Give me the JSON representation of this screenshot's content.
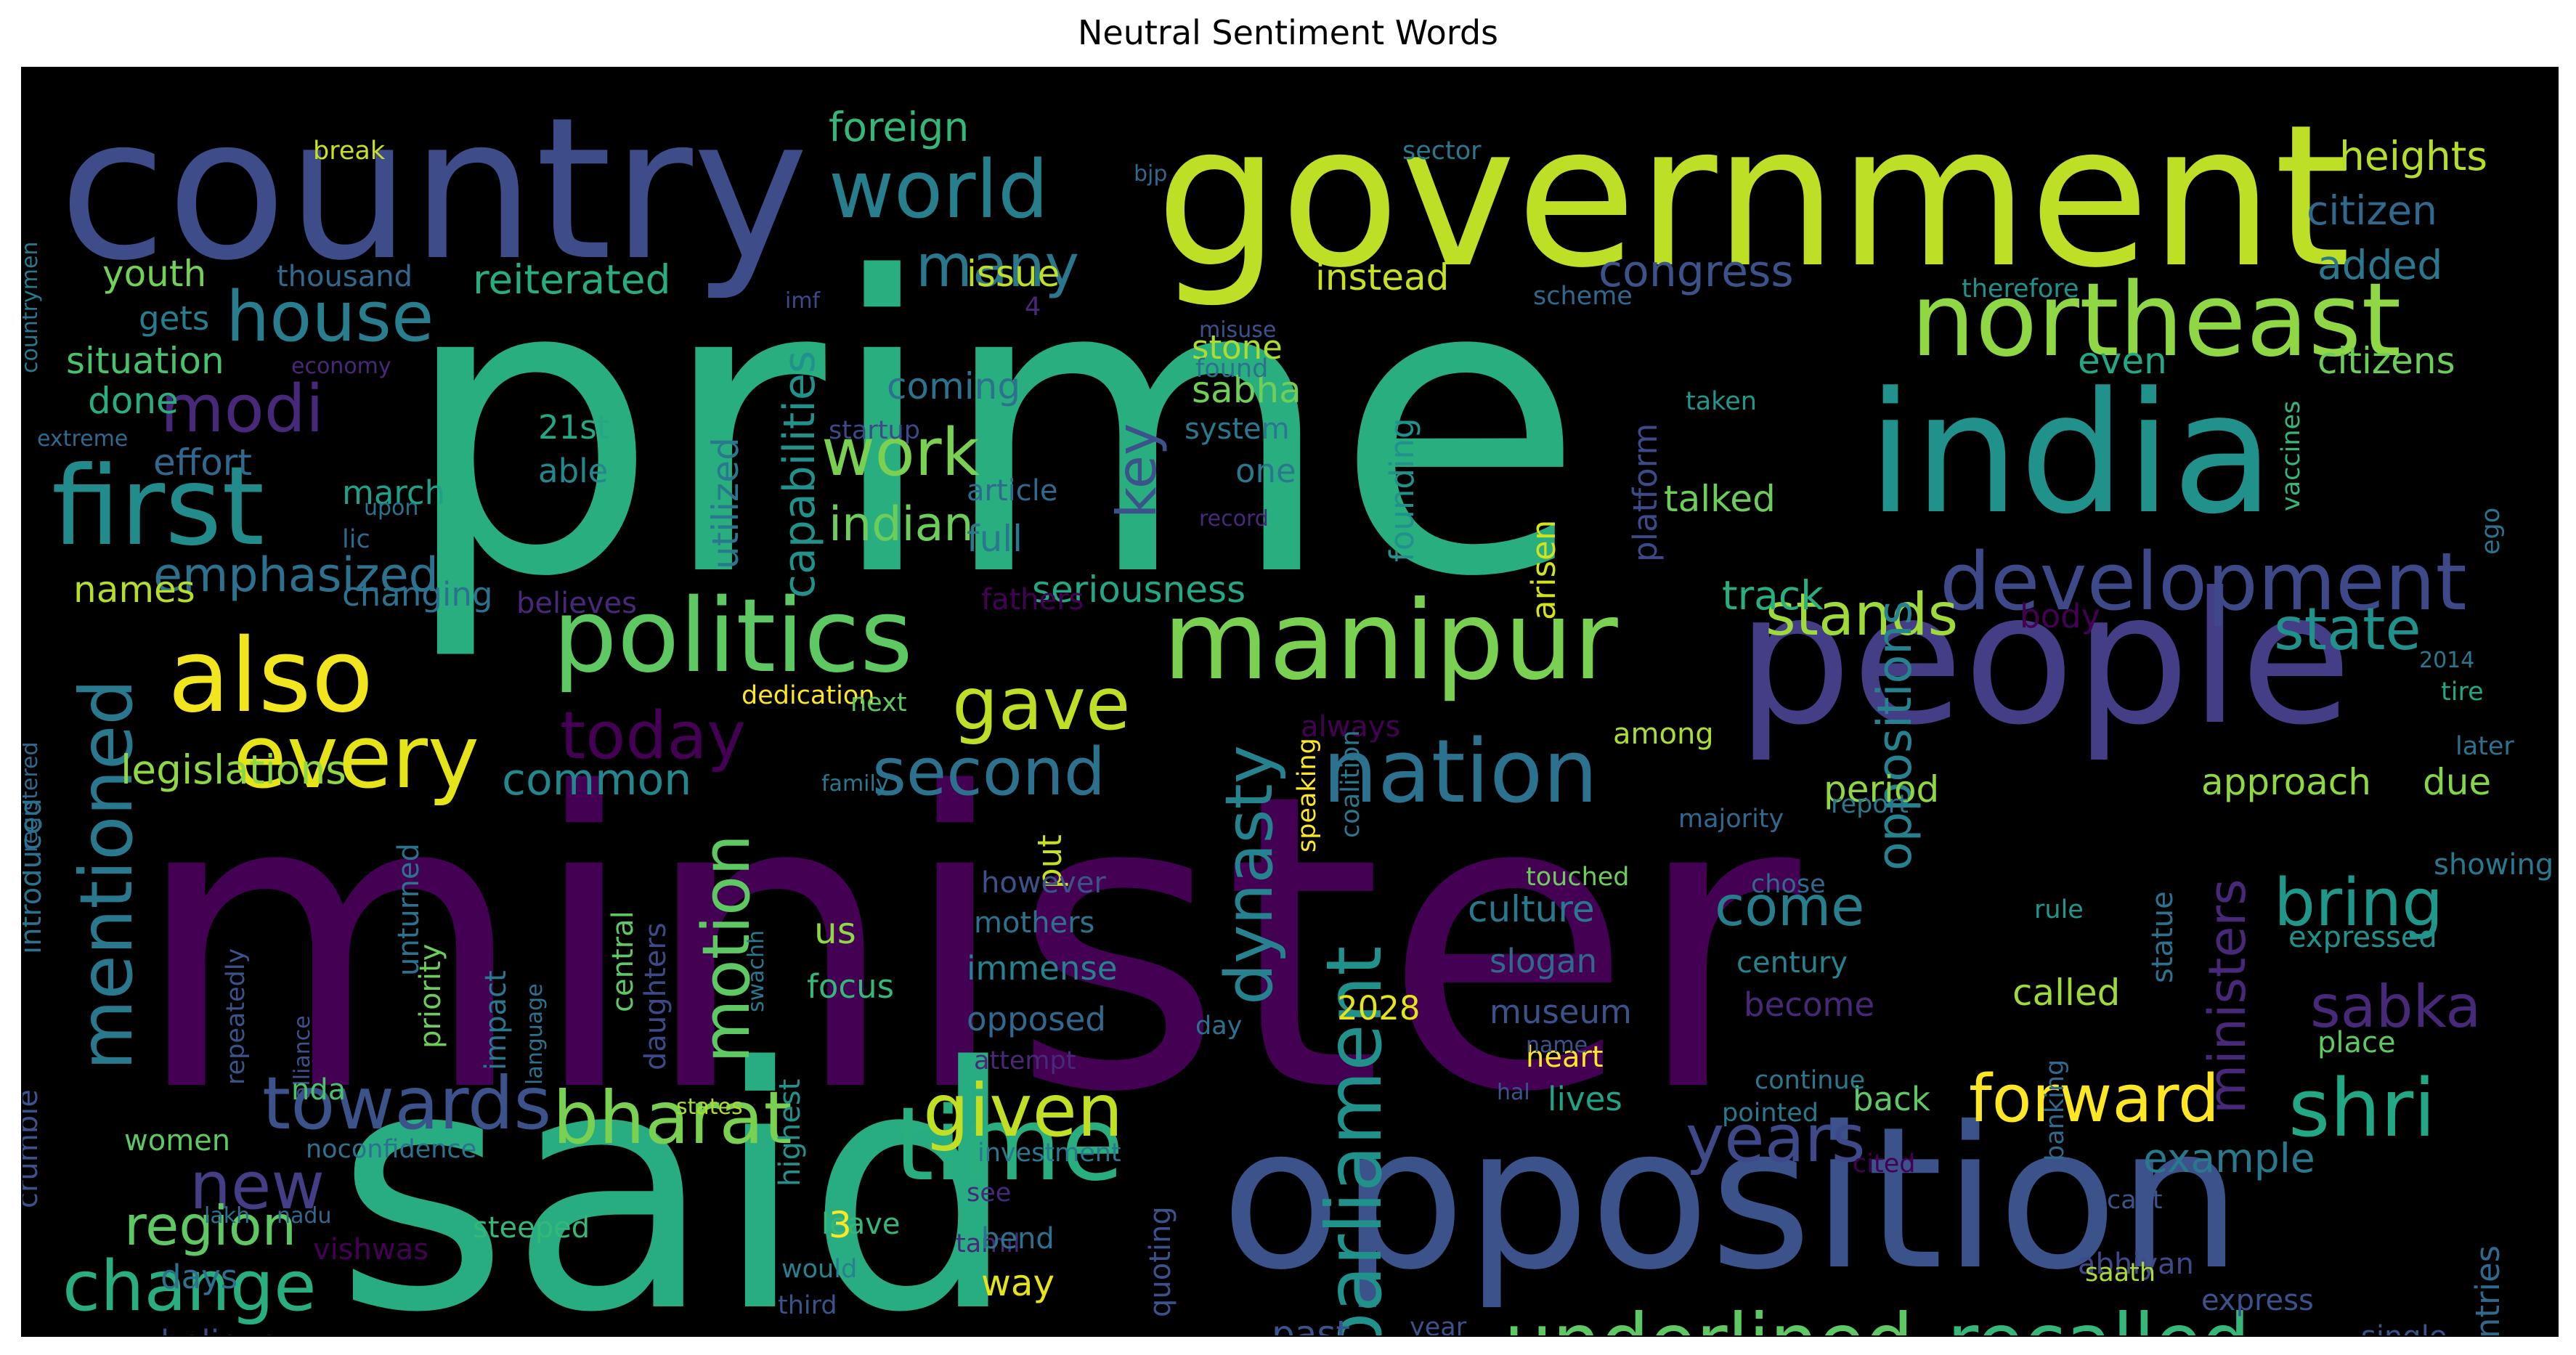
{
  "title": "Neutral Sentiment Words",
  "colors": {
    "background": "#000000",
    "palette": [
      "#440154",
      "#3b528b",
      "#21918c",
      "#5ec962",
      "#fde725",
      "#31688e",
      "#35b779",
      "#90d743",
      "#443983",
      "#2a788e"
    ]
  },
  "words": [
    {
      "text": "minister",
      "c": "#440154"
    },
    {
      "text": "prime",
      "c": "#29af7f"
    },
    {
      "text": "said",
      "c": "#27ad81"
    },
    {
      "text": "government",
      "c": "#bddf26"
    },
    {
      "text": "country",
      "c": "#3e4c8a"
    },
    {
      "text": "opposition",
      "c": "#3b528b"
    },
    {
      "text": "people",
      "c": "#433e85"
    },
    {
      "text": "india",
      "c": "#21918c"
    },
    {
      "text": "manipur",
      "c": "#7ad151"
    },
    {
      "text": "politics",
      "c": "#5ec962"
    },
    {
      "text": "northeast",
      "c": "#8fd744"
    },
    {
      "text": "time",
      "c": "#29af7f"
    },
    {
      "text": "development",
      "c": "#3e4989"
    },
    {
      "text": "first",
      "c": "#228c8d"
    },
    {
      "text": "also",
      "c": "#f1e51d"
    },
    {
      "text": "every",
      "c": "#e5e419"
    },
    {
      "text": "mentioned",
      "c": "#2a788e"
    },
    {
      "text": "underlined",
      "c": "#5ec962"
    },
    {
      "text": "recalled",
      "c": "#35b779"
    },
    {
      "text": "nation",
      "c": "#2c728e"
    },
    {
      "text": "world",
      "c": "#277f8e"
    },
    {
      "text": "house",
      "c": "#287d8e"
    },
    {
      "text": "modi",
      "c": "#482878"
    },
    {
      "text": "today",
      "c": "#440154"
    },
    {
      "text": "towards",
      "c": "#3b528b"
    },
    {
      "text": "bharat",
      "c": "#7ad151"
    },
    {
      "text": "given",
      "c": "#c2df23"
    },
    {
      "text": "years",
      "c": "#3e4989"
    },
    {
      "text": "shri",
      "c": "#22a884"
    },
    {
      "text": "forward",
      "c": "#fde725"
    },
    {
      "text": "change",
      "c": "#29af7f"
    },
    {
      "text": "second",
      "c": "#2c728e"
    },
    {
      "text": "parliament",
      "c": "#21918c"
    },
    {
      "text": "motion",
      "c": "#5ec962"
    },
    {
      "text": "dynasty",
      "c": "#26828e"
    },
    {
      "text": "state",
      "c": "#21918c"
    },
    {
      "text": "stands",
      "c": "#9fda3a"
    },
    {
      "text": "gave",
      "c": "#bddf26"
    },
    {
      "text": "work",
      "c": "#7ad151"
    },
    {
      "text": "many",
      "c": "#2a788e"
    },
    {
      "text": "bring",
      "c": "#1f988b"
    },
    {
      "text": "sabka",
      "c": "#482878"
    },
    {
      "text": "come",
      "c": "#277f8e"
    },
    {
      "text": "new",
      "c": "#433e85"
    },
    {
      "text": "region",
      "c": "#5ec962"
    },
    {
      "text": "key",
      "c": "#3b528b"
    },
    {
      "text": "indian",
      "c": "#6ccd5a"
    },
    {
      "text": "emphasized",
      "c": "#2c728e"
    },
    {
      "text": "legislations",
      "c": "#8fd744"
    },
    {
      "text": "common",
      "c": "#23888e"
    },
    {
      "text": "ministers",
      "c": "#482878"
    },
    {
      "text": "oppositions",
      "c": "#26828e"
    },
    {
      "text": "congress",
      "c": "#3b528b"
    },
    {
      "text": "foreign",
      "c": "#35b779"
    },
    {
      "text": "heights",
      "c": "#b5de2b"
    },
    {
      "text": "citizen",
      "c": "#31688e"
    },
    {
      "text": "added",
      "c": "#2a788e"
    },
    {
      "text": "citizens",
      "c": "#6ccd5a"
    },
    {
      "text": "even",
      "c": "#22a884"
    },
    {
      "text": "reiterated",
      "c": "#27ad81"
    },
    {
      "text": "issue",
      "c": "#bddf26"
    },
    {
      "text": "instead",
      "c": "#c8e020"
    },
    {
      "text": "youth",
      "c": "#73d056"
    },
    {
      "text": "thousand",
      "c": "#31688e"
    },
    {
      "text": "gets",
      "c": "#277f8e"
    },
    {
      "text": "situation",
      "c": "#4ac16d"
    },
    {
      "text": "done",
      "c": "#29af7f"
    },
    {
      "text": "effort",
      "c": "#31688e"
    },
    {
      "text": "march",
      "c": "#1fa188"
    },
    {
      "text": "names",
      "c": "#b5de2b"
    },
    {
      "text": "changing",
      "c": "#2c728e"
    },
    {
      "text": "coming",
      "c": "#2c728e"
    },
    {
      "text": "capabilities",
      "c": "#21918c"
    },
    {
      "text": "utilized",
      "c": "#2a788e"
    },
    {
      "text": "21st",
      "c": "#22a884"
    },
    {
      "text": "able",
      "c": "#23888e"
    },
    {
      "text": "stone",
      "c": "#aadc32"
    },
    {
      "text": "sabha",
      "c": "#70cf57"
    },
    {
      "text": "found",
      "c": "#2c728e"
    },
    {
      "text": "system",
      "c": "#2a788e"
    },
    {
      "text": "one",
      "c": "#2a788e"
    },
    {
      "text": "article",
      "c": "#31688e"
    },
    {
      "text": "full",
      "c": "#2a788e"
    },
    {
      "text": "seriousness",
      "c": "#22a884"
    },
    {
      "text": "fathers",
      "c": "#440154"
    },
    {
      "text": "believes",
      "c": "#482878"
    },
    {
      "text": "founding",
      "c": "#21918c"
    },
    {
      "text": "arisen",
      "c": "#d2e21b"
    },
    {
      "text": "platform",
      "c": "#3e4989"
    },
    {
      "text": "talked",
      "c": "#6ccd5a"
    },
    {
      "text": "track",
      "c": "#29af7f"
    },
    {
      "text": "body",
      "c": "#440154"
    },
    {
      "text": "period",
      "c": "#90d743"
    },
    {
      "text": "approach",
      "c": "#8fd744"
    },
    {
      "text": "due",
      "c": "#86d549"
    },
    {
      "text": "among",
      "c": "#aadc32"
    },
    {
      "text": "always",
      "c": "#440154"
    },
    {
      "text": "culture",
      "c": "#2a788e"
    },
    {
      "text": "slogan",
      "c": "#31688e"
    },
    {
      "text": "century",
      "c": "#26828e"
    },
    {
      "text": "become",
      "c": "#482878"
    },
    {
      "text": "called",
      "c": "#9fda3a"
    },
    {
      "text": "museum",
      "c": "#3b528b"
    },
    {
      "text": "heart",
      "c": "#fde725"
    },
    {
      "text": "lives",
      "c": "#20a386"
    },
    {
      "text": "back",
      "c": "#5ec962"
    },
    {
      "text": "example",
      "c": "#2a788e"
    },
    {
      "text": "2028",
      "c": "#e5e419"
    },
    {
      "text": "us",
      "c": "#8fd744"
    },
    {
      "text": "focus",
      "c": "#35b779"
    },
    {
      "text": "mothers",
      "c": "#2c728e"
    },
    {
      "text": "immense",
      "c": "#26828e"
    },
    {
      "text": "opposed",
      "c": "#31688e"
    },
    {
      "text": "attempt",
      "c": "#482878"
    },
    {
      "text": "day",
      "c": "#2c728e"
    },
    {
      "text": "put",
      "c": "#c8e020"
    },
    {
      "text": "however",
      "c": "#3b528b"
    },
    {
      "text": "speaking",
      "c": "#fde725"
    },
    {
      "text": "coalition",
      "c": "#2a788e"
    },
    {
      "text": "name",
      "c": "#3b528b"
    },
    {
      "text": "continue",
      "c": "#2a788e"
    },
    {
      "text": "pointed",
      "c": "#2a788e"
    },
    {
      "text": "hal",
      "c": "#3b528b"
    },
    {
      "text": "cited",
      "c": "#440154"
    },
    {
      "text": "cant",
      "c": "#3b528b"
    },
    {
      "text": "banking",
      "c": "#31688e"
    },
    {
      "text": "abhiyan",
      "c": "#3e4989"
    },
    {
      "text": "saath",
      "c": "#aadc32"
    },
    {
      "text": "chose",
      "c": "#31688e"
    },
    {
      "text": "touched",
      "c": "#6ccd5a"
    },
    {
      "text": "majority",
      "c": "#31688e"
    },
    {
      "text": "report",
      "c": "#2a788e"
    },
    {
      "text": "rule",
      "c": "#1f988b"
    },
    {
      "text": "statue",
      "c": "#2c728e"
    },
    {
      "text": "expressed",
      "c": "#21918c"
    },
    {
      "text": "showing",
      "c": "#2a788e"
    },
    {
      "text": "place",
      "c": "#5ec962"
    },
    {
      "text": "express",
      "c": "#3b528b"
    },
    {
      "text": "countries",
      "c": "#31688e"
    },
    {
      "text": "single",
      "c": "#3b528b"
    },
    {
      "text": "later",
      "c": "#2c728e"
    },
    {
      "text": "tire",
      "c": "#22a884"
    },
    {
      "text": "ego",
      "c": "#2c728e"
    },
    {
      "text": "vaccines",
      "c": "#35b779"
    },
    {
      "text": "taken",
      "c": "#1f988b"
    },
    {
      "text": "2014",
      "c": "#2a788e"
    },
    {
      "text": "therefore",
      "c": "#21918c"
    },
    {
      "text": "scheme",
      "c": "#31688e"
    },
    {
      "text": "sector",
      "c": "#2a788e"
    },
    {
      "text": "bjp",
      "c": "#31688e"
    },
    {
      "text": "imf",
      "c": "#3e4989"
    },
    {
      "text": "4",
      "c": "#482878"
    },
    {
      "text": "misuse",
      "c": "#3b528b"
    },
    {
      "text": "startup",
      "c": "#3e4989"
    },
    {
      "text": "record",
      "c": "#482878"
    },
    {
      "text": "break",
      "c": "#c8e020"
    },
    {
      "text": "countrymen",
      "c": "#2a788e"
    },
    {
      "text": "economy",
      "c": "#482878"
    },
    {
      "text": "extreme",
      "c": "#31688e"
    },
    {
      "text": "upon",
      "c": "#2c728e"
    },
    {
      "text": "lic",
      "c": "#31688e"
    },
    {
      "text": "dedication",
      "c": "#fde725"
    },
    {
      "text": "next",
      "c": "#5ec962"
    },
    {
      "text": "family",
      "c": "#2a788e"
    },
    {
      "text": "registered",
      "c": "#31688e"
    },
    {
      "text": "introduced",
      "c": "#2c728e"
    },
    {
      "text": "repeatedly",
      "c": "#3b528b"
    },
    {
      "text": "alliance",
      "c": "#3b528b"
    },
    {
      "text": "unturned",
      "c": "#2c728e"
    },
    {
      "text": "priority",
      "c": "#6ccd5a"
    },
    {
      "text": "impact",
      "c": "#2a788e"
    },
    {
      "text": "language",
      "c": "#2c728e"
    },
    {
      "text": "central",
      "c": "#5ec962"
    },
    {
      "text": "daughters",
      "c": "#3e4989"
    },
    {
      "text": "swachh",
      "c": "#2a788e"
    },
    {
      "text": "highest",
      "c": "#21918c"
    },
    {
      "text": "states",
      "c": "#a8db34"
    },
    {
      "text": "investment",
      "c": "#2a788e"
    },
    {
      "text": "see",
      "c": "#482878"
    },
    {
      "text": "women",
      "c": "#5ec962"
    },
    {
      "text": "noconfidence",
      "c": "#2c728e"
    },
    {
      "text": "crumble",
      "c": "#3b528b"
    },
    {
      "text": "lakh",
      "c": "#2c728e"
    },
    {
      "text": "nadu",
      "c": "#31688e"
    },
    {
      "text": "nda",
      "c": "#4ac16d"
    },
    {
      "text": "vishwas",
      "c": "#440154"
    },
    {
      "text": "days",
      "c": "#2c728e"
    },
    {
      "text": "believe",
      "c": "#3e4989"
    },
    {
      "text": "steeped",
      "c": "#35b779"
    },
    {
      "text": "leave",
      "c": "#35b779"
    },
    {
      "text": "3",
      "c": "#fde725"
    },
    {
      "text": "would",
      "c": "#26828e"
    },
    {
      "text": "third",
      "c": "#3b528b"
    },
    {
      "text": "tamil",
      "c": "#482878"
    },
    {
      "text": "bend",
      "c": "#2c728e"
    },
    {
      "text": "quoting",
      "c": "#3b528b"
    },
    {
      "text": "way",
      "c": "#e5e419"
    },
    {
      "text": "past",
      "c": "#3b528b"
    },
    {
      "text": "year",
      "c": "#3b528b"
    },
    {
      "text": "home",
      "c": "#2a788e"
    }
  ]
}
